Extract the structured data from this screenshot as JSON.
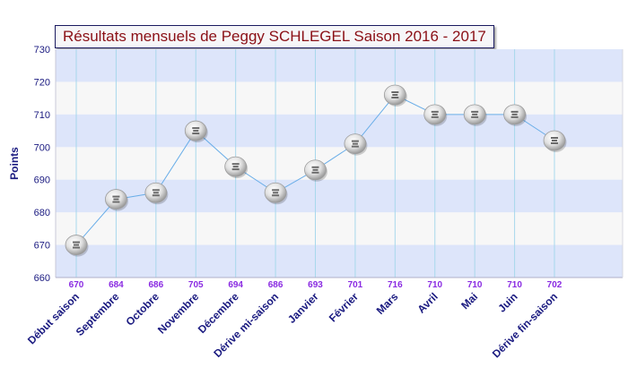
{
  "chart_data": {
    "type": "line",
    "title": "Résultats mensuels de Peggy SCHLEGEL Saison 2016 - 2017",
    "ylabel": "Points",
    "xlabel": "",
    "ylim": [
      660,
      730
    ],
    "yticks": [
      "660",
      "670",
      "680",
      "690",
      "700",
      "710",
      "720",
      "730"
    ],
    "grid": true,
    "categories": [
      "Début saison",
      "Septembre",
      "Octobre",
      "Novembre",
      "Décembre",
      "Dérive mi-saison",
      "Janvier",
      "Février",
      "Mars",
      "Avril",
      "Mai",
      "Juin",
      "Dérive fin-saison"
    ],
    "values": [
      670,
      684,
      686,
      705,
      694,
      686,
      693,
      701,
      716,
      710,
      710,
      710,
      702
    ],
    "value_labels": [
      "670",
      "684",
      "686",
      "705",
      "694",
      "686",
      "693",
      "701",
      "716",
      "710",
      "710",
      "710",
      "702"
    ]
  },
  "colors": {
    "title_text": "#8b1016",
    "title_border": "#1a1a60",
    "axis_text": "#1a1a80",
    "value_label": "#8a2be2",
    "band": "#dde5fa",
    "plot_bg": "#f7f7f7",
    "gridline": "#a8d8ec",
    "series_line": "#6aaee8",
    "marker": "#cfcfcf"
  },
  "icons": {
    "marker": "ffe-logo-icon"
  }
}
